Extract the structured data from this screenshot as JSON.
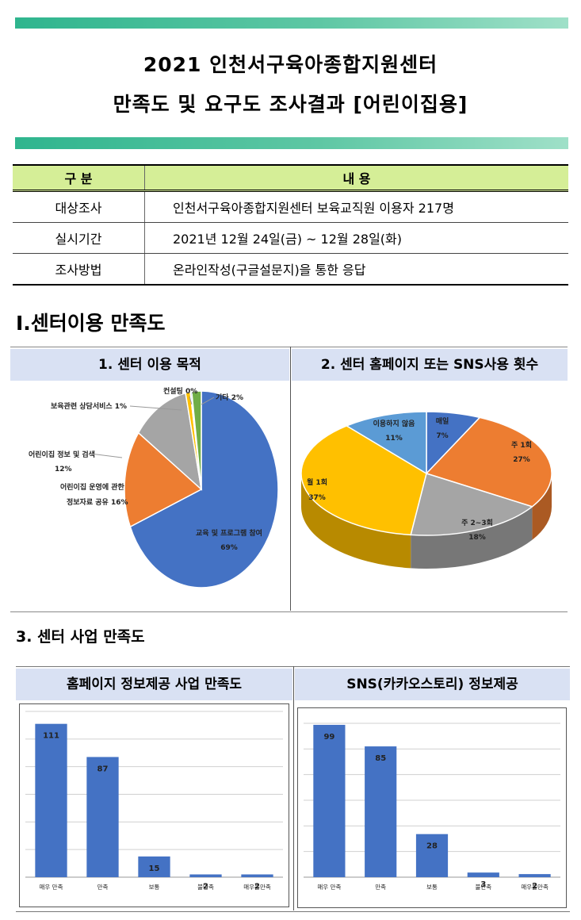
{
  "header": {
    "title_line1": "2021 인천서구육아종합지원센터",
    "title_line2": "만족도 및 요구도 조사결과 [어린이집용]"
  },
  "info_table": {
    "col1_header": "구 분",
    "col2_header": "내 용",
    "rows": [
      {
        "label": "대상조사",
        "value": "인천서구육아종합지원센터 보육교직원 이용자 217명"
      },
      {
        "label": "실시기간",
        "value": "2021년 12월 24일(금) ~ 12월 28일(화)"
      },
      {
        "label": "조사방법",
        "value": "온라인작성(구글설문지)을 통한 응답"
      }
    ]
  },
  "section1_title": "Ⅰ.센터이용 만족도",
  "panel1_title": "1. 센터 이용 목적",
  "panel2_title": "2. 센터 홈페이지 또는 SNS사용 횟수",
  "section3_title": "3. 센터 사업 만족도",
  "panel3_title": "홈페이지 정보제공 사업 만족도",
  "panel4_title": "SNS(카카오스토리) 정보제공",
  "chart_data": [
    {
      "type": "pie",
      "slices": [
        {
          "label": "교육 및 프로그램 참여",
          "pct_label": "69%",
          "value": 69,
          "color": "#4472c4"
        },
        {
          "label": "어린이집 운영에 관한 정보자료 공유",
          "pct_label": "16%",
          "value": 16,
          "color": "#ed7d31"
        },
        {
          "label": "어린이집 정보 및 검색",
          "pct_label": "12%",
          "value": 12,
          "color": "#a5a5a5"
        },
        {
          "label": "보육관련 상담서비스",
          "pct_label": "1%",
          "value": 1,
          "color": "#ffc000"
        },
        {
          "label": "컨설팅",
          "pct_label": "0%",
          "value": 0,
          "color": "#5b9bd5"
        },
        {
          "label": "기타",
          "pct_label": "2%",
          "value": 2,
          "color": "#70ad47"
        }
      ]
    },
    {
      "type": "pie",
      "slices": [
        {
          "label": "매일",
          "pct_label": "7%",
          "value": 7,
          "color": "#4472c4"
        },
        {
          "label": "주 1회",
          "pct_label": "27%",
          "value": 27,
          "color": "#ed7d31"
        },
        {
          "label": "주 2~3회",
          "pct_label": "18%",
          "value": 18,
          "color": "#a5a5a5"
        },
        {
          "label": "월 1회",
          "pct_label": "37%",
          "value": 37,
          "color": "#ffc000"
        },
        {
          "label": "이용하지 않음",
          "pct_label": "11%",
          "value": 11,
          "color": "#5b9bd5"
        }
      ]
    },
    {
      "type": "bar",
      "categories": [
        "매우 만족",
        "만족",
        "보통",
        "불만족",
        "매우불만족"
      ],
      "values": [
        111,
        87,
        15,
        2,
        2
      ],
      "ylim": [
        0,
        120
      ],
      "color": "#4472c4"
    },
    {
      "type": "bar",
      "categories": [
        "매우 만족",
        "만족",
        "보통",
        "불만족",
        "매우불만족"
      ],
      "values": [
        99,
        85,
        28,
        3,
        2
      ],
      "ylim": [
        0,
        100
      ],
      "color": "#4472c4"
    }
  ]
}
